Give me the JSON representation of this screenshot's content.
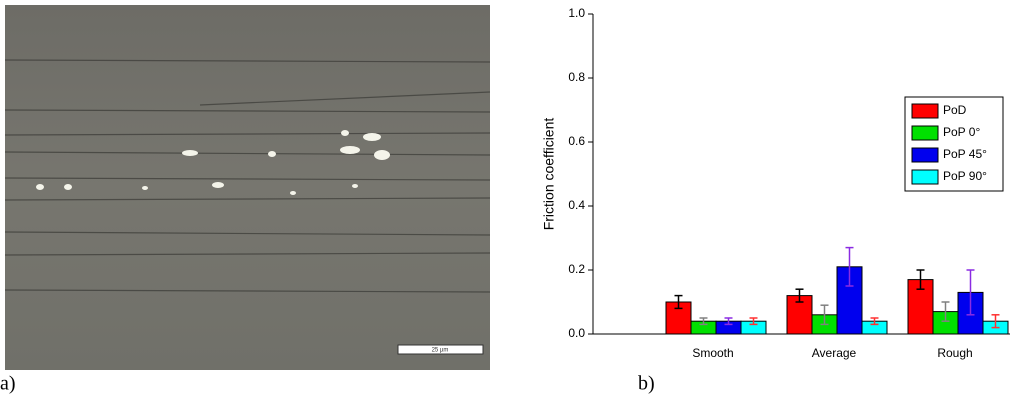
{
  "image": {
    "label": "a)",
    "scale_bar": "25 µm"
  },
  "chart_data": {
    "type": "bar",
    "panel_label": "b)",
    "y_label": "Friction coefficient",
    "categories": [
      "Smooth",
      "Average",
      "Rough"
    ],
    "series": [
      {
        "name": "PoD",
        "color": "#ff0000",
        "error_color": "#000000",
        "values": [
          0.1,
          0.12,
          0.17
        ],
        "errors": [
          0.02,
          0.02,
          0.03
        ]
      },
      {
        "name": "PoP 0°",
        "color": "#00e000",
        "error_color": "#808080",
        "values": [
          0.04,
          0.06,
          0.07
        ],
        "errors": [
          0.01,
          0.03,
          0.03
        ]
      },
      {
        "name": "PoP 45°",
        "color": "#0000ee",
        "error_color": "#8a2be2",
        "values": [
          0.04,
          0.21,
          0.13
        ],
        "errors": [
          0.01,
          0.06,
          0.07
        ]
      },
      {
        "name": "PoP 90°",
        "color": "#00ffff",
        "error_color": "#ff3030",
        "values": [
          0.04,
          0.04,
          0.04
        ],
        "errors": [
          0.01,
          0.01,
          0.02
        ]
      }
    ],
    "ylim": [
      0,
      1
    ],
    "yticks": [
      {
        "value": 0,
        "label": "0.0"
      },
      0.2,
      0.4,
      0.6,
      0.8,
      {
        "value": 1,
        "label": "1.0"
      }
    ],
    "legend": "upper right"
  }
}
